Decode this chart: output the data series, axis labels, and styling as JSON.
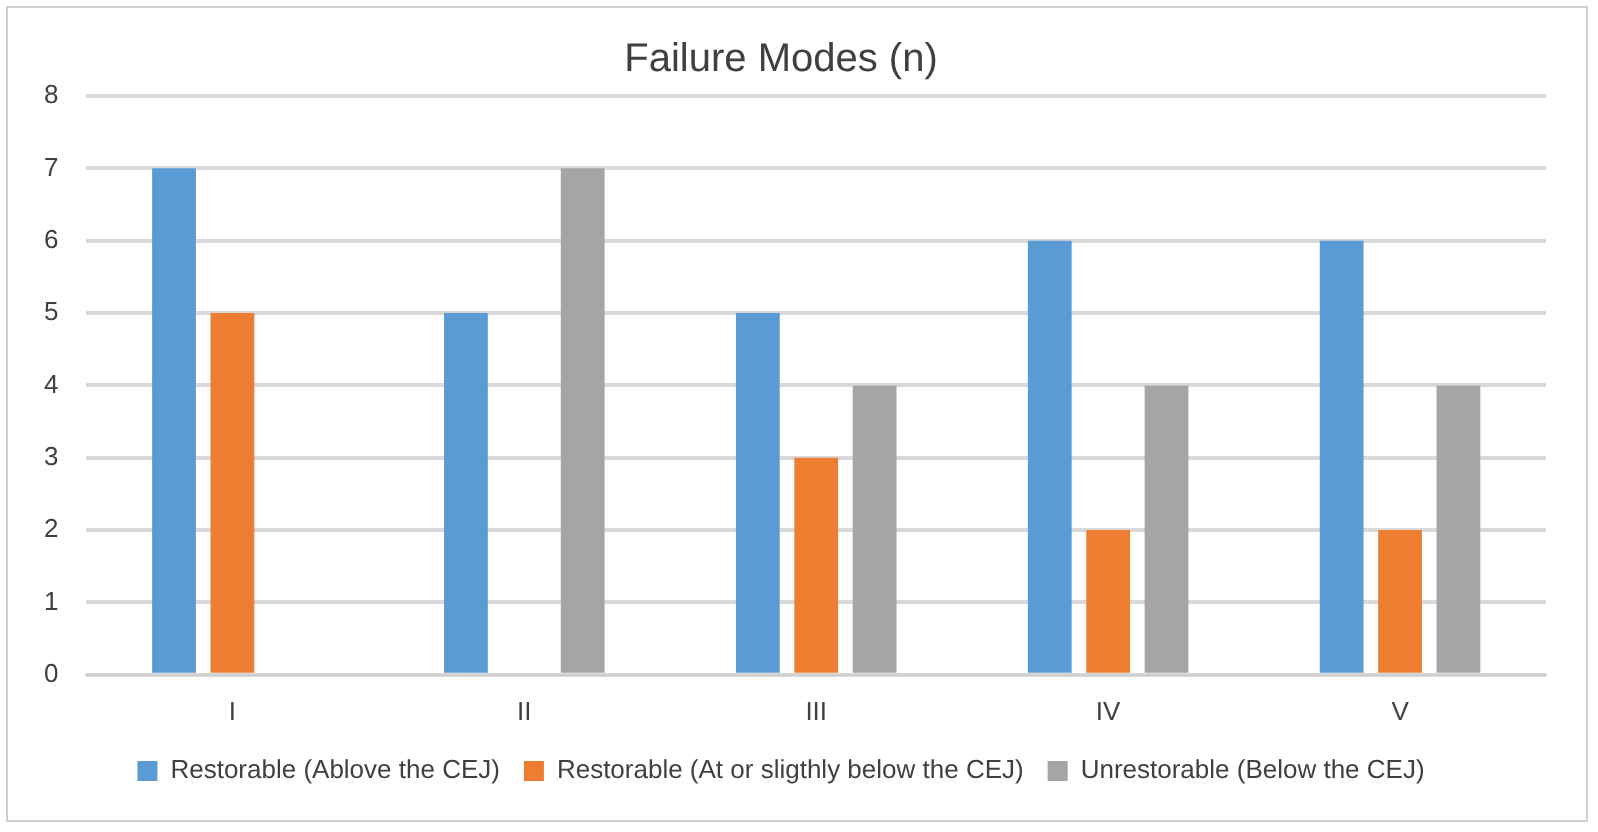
{
  "chart_data": {
    "type": "bar",
    "title": "Failure Modes (n)",
    "categories": [
      "I",
      "II",
      "III",
      "IV",
      "V"
    ],
    "series": [
      {
        "name": "Restorable (Ablove the CEJ)",
        "color": "#5b9bd5",
        "values": [
          7,
          5,
          5,
          6,
          6
        ]
      },
      {
        "name": "Restorable (At or sligthly below the CEJ)",
        "color": "#ed7d31",
        "values": [
          5,
          0,
          3,
          2,
          2
        ]
      },
      {
        "name": "Unrestorable (Below the CEJ)",
        "color": "#a5a5a5",
        "values": [
          0,
          7,
          4,
          4,
          4
        ]
      }
    ],
    "ylim": [
      0,
      8
    ],
    "yticks": [
      0,
      1,
      2,
      3,
      4,
      5,
      6,
      7,
      8
    ],
    "grid": "y",
    "legend": "bottom"
  }
}
